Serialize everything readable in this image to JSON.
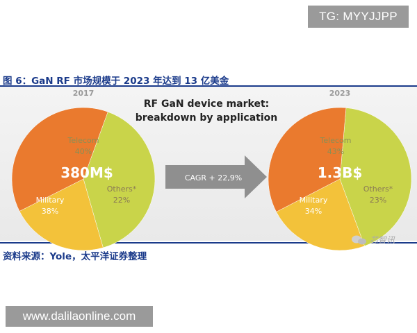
{
  "watermark_tg": "TG: MYYJJPP",
  "figure_title": "图 6：GaN RF 市场规模于 2023 年达到 13 亿美金",
  "source": "资料来源：Yole，太平洋证券整理",
  "watermark_site": "www.dalilaonline.com",
  "wechat_mark": "芯智讯",
  "chart_data": {
    "title_line1": "RF GaN device market:",
    "title_line2": "breakdown by application",
    "arrow_label": "CAGR + 22,9%",
    "charts": [
      {
        "type": "pie",
        "year": "2017",
        "total": "380M$",
        "slices": [
          {
            "name": "Telecom",
            "value": 40,
            "label": "40%",
            "color": "#c9d44a"
          },
          {
            "name": "Others*",
            "value": 22,
            "label": "22%",
            "color": "#f3c23a"
          },
          {
            "name": "Military",
            "value": 38,
            "label": "38%",
            "color": "#ea7a2e"
          }
        ]
      },
      {
        "type": "pie",
        "year": "2023",
        "total": "1.3B$",
        "slices": [
          {
            "name": "Telecom",
            "value": 43,
            "label": "43%",
            "color": "#c9d44a"
          },
          {
            "name": "Others*",
            "value": 23,
            "label": "23%",
            "color": "#f3c23a"
          },
          {
            "name": "Military",
            "value": 34,
            "label": "34%",
            "color": "#ea7a2e"
          }
        ]
      }
    ]
  }
}
